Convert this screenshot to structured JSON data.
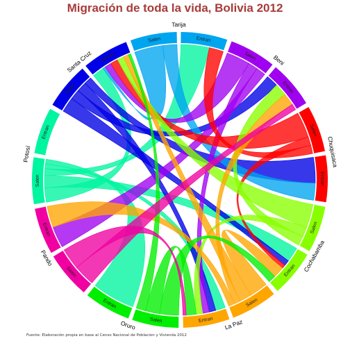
{
  "chart_data": {
    "type": "chord",
    "title": "Migración de toda la vida, Bolivia 2012",
    "source": "Fuente: Elaboración propia en base al Censo Nacional de Poblacion y Vivienda 2012",
    "sub_labels": {
      "out": "Salen",
      "in": "Entran"
    },
    "departments": [
      {
        "name": "Potosí",
        "color": "#00f5a0"
      },
      {
        "name": "Santa Cruz",
        "color": "#0000e6"
      },
      {
        "name": "Tarija",
        "color": "#00a5f0"
      },
      {
        "name": "Beni",
        "color": "#a000f0"
      },
      {
        "name": "Chuquisaca",
        "color": "#ff0000"
      },
      {
        "name": "Cochabamba",
        "color": "#88ff00"
      },
      {
        "name": "La Paz",
        "color": "#ffa500"
      },
      {
        "name": "Oruro",
        "color": "#00ee00"
      },
      {
        "name": "Pando",
        "color": "#f000a0"
      }
    ],
    "flows": [
      {
        "from": "Potosí",
        "to": "Santa Cruz",
        "value": 9
      },
      {
        "from": "Potosí",
        "to": "Cochabamba",
        "value": 8
      },
      {
        "from": "Potosí",
        "to": "Tarija",
        "value": 4
      },
      {
        "from": "Potosí",
        "to": "La Paz",
        "value": 3
      },
      {
        "from": "Potosí",
        "to": "Oruro",
        "value": 3
      },
      {
        "from": "Santa Cruz",
        "to": "Cochabamba",
        "value": 3
      },
      {
        "from": "Santa Cruz",
        "to": "Beni",
        "value": 2
      },
      {
        "from": "Santa Cruz",
        "to": "La Paz",
        "value": 2
      },
      {
        "from": "Santa Cruz",
        "to": "Chuquisaca",
        "value": 1.5
      },
      {
        "from": "Tarija",
        "to": "Santa Cruz",
        "value": 2
      },
      {
        "from": "Tarija",
        "to": "Chuquisaca",
        "value": 1
      },
      {
        "from": "Beni",
        "to": "Santa Cruz",
        "value": 5
      },
      {
        "from": "Beni",
        "to": "La Paz",
        "value": 2
      },
      {
        "from": "Beni",
        "to": "Pando",
        "value": 2
      },
      {
        "from": "Chuquisaca",
        "to": "Santa Cruz",
        "value": 6
      },
      {
        "from": "Chuquisaca",
        "to": "Cochabamba",
        "value": 2
      },
      {
        "from": "Chuquisaca",
        "to": "Tarija",
        "value": 2
      },
      {
        "from": "Cochabamba",
        "to": "Santa Cruz",
        "value": 5
      },
      {
        "from": "Cochabamba",
        "to": "La Paz",
        "value": 2
      },
      {
        "from": "Cochabamba",
        "to": "Beni",
        "value": 2
      },
      {
        "from": "La Paz",
        "to": "Cochabamba",
        "value": 6
      },
      {
        "from": "La Paz",
        "to": "Santa Cruz",
        "value": 4
      },
      {
        "from": "La Paz",
        "to": "Beni",
        "value": 2
      },
      {
        "from": "La Paz",
        "to": "Pando",
        "value": 2
      },
      {
        "from": "Oruro",
        "to": "Cochabamba",
        "value": 4
      },
      {
        "from": "Oruro",
        "to": "La Paz",
        "value": 3
      },
      {
        "from": "Oruro",
        "to": "Santa Cruz",
        "value": 2
      },
      {
        "from": "Pando",
        "to": "Beni",
        "value": 1
      },
      {
        "from": "Pando",
        "to": "La Paz",
        "value": 1
      }
    ]
  }
}
